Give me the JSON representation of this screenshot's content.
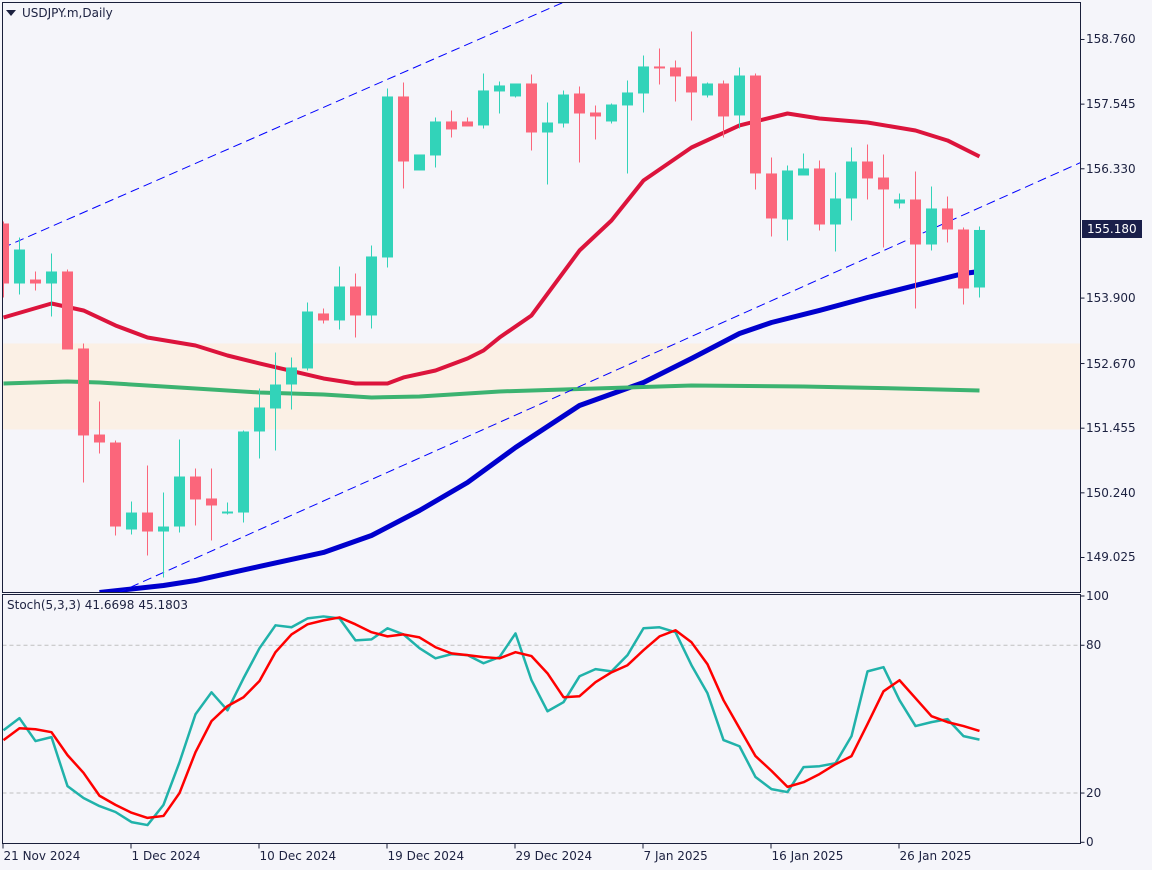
{
  "header": {
    "symbol_label": "USDJPY.m,Daily",
    "dropdown_icon": "triangle-down-icon"
  },
  "colors": {
    "background": "#f5f5fa",
    "bull": "#32d3b9",
    "bear": "#fb667b",
    "axis": "#1a1f3a",
    "zone": "#fbf0e5",
    "channel": "#0000ff",
    "price_tag": "#1a1f4a"
  },
  "chart_data": [
    {
      "type": "candlestick",
      "title": "USDJPY.m,Daily",
      "ylim": [
        148.367,
        159.455
      ],
      "y_ticks": [
        "158.760",
        "157.545",
        "156.330",
        "153.900",
        "152.670",
        "151.455",
        "150.240",
        "149.025"
      ],
      "current_price": "155.180",
      "x_ticks": [
        {
          "index": 0,
          "label": "21 Nov 2024"
        },
        {
          "index": 8,
          "label": "1 Dec 2024"
        },
        {
          "index": 16,
          "label": "10 Dec 2024"
        },
        {
          "index": 24,
          "label": "19 Dec 2024"
        },
        {
          "index": 32,
          "label": "29 Dec 2024"
        },
        {
          "index": 40,
          "label": "7 Jan 2025"
        },
        {
          "index": 48,
          "label": "16 Jan 2025"
        },
        {
          "index": 56,
          "label": "26 Jan 2025"
        }
      ],
      "candles_ohlc": [
        [
          155.302,
          155.34,
          153.911,
          154.174
        ],
        [
          154.174,
          155.039,
          153.968,
          154.813
        ],
        [
          154.249,
          154.4,
          154.043,
          154.174
        ],
        [
          154.174,
          154.738,
          153.554,
          154.4
        ],
        [
          154.4,
          154.437,
          152.934,
          152.934
        ],
        [
          152.953,
          153.047,
          150.434,
          151.318
        ],
        [
          151.336,
          151.957,
          150.979,
          151.186
        ],
        [
          151.186,
          151.224,
          149.438,
          149.607
        ],
        [
          149.551,
          150.077,
          149.457,
          149.87
        ],
        [
          149.87,
          150.754,
          149.062,
          149.513
        ],
        [
          149.513,
          150.246,
          148.649,
          149.607
        ],
        [
          149.607,
          151.243,
          149.495,
          150.547
        ],
        [
          150.547,
          150.697,
          149.626,
          150.115
        ],
        [
          150.134,
          150.697,
          149.344,
          150.002
        ],
        [
          149.852,
          150.058,
          149.833,
          149.889
        ],
        [
          149.87,
          151.412,
          149.683,
          151.393
        ],
        [
          151.393,
          152.201,
          150.885,
          151.844
        ],
        [
          151.825,
          152.878,
          151.036,
          152.276
        ],
        [
          152.276,
          152.784,
          151.806,
          152.596
        ],
        [
          152.577,
          153.817,
          152.539,
          153.648
        ],
        [
          153.611,
          153.704,
          153.423,
          153.479
        ],
        [
          153.479,
          154.494,
          153.31,
          154.118
        ],
        [
          154.118,
          154.362,
          153.159,
          153.573
        ],
        [
          153.573,
          154.888,
          153.329,
          154.682
        ],
        [
          154.663,
          157.839,
          154.475,
          157.689
        ],
        [
          157.689,
          157.952,
          155.96,
          156.467
        ],
        [
          156.298,
          156.599,
          156.298,
          156.599
        ],
        [
          156.58,
          157.294,
          156.354,
          157.219
        ],
        [
          157.219,
          157.426,
          156.918,
          157.069
        ],
        [
          157.219,
          157.294,
          157.125,
          157.125
        ],
        [
          157.144,
          158.121,
          157.087,
          157.802
        ],
        [
          157.783,
          157.971,
          157.369,
          157.896
        ],
        [
          157.689,
          157.933,
          157.67,
          157.933
        ],
        [
          157.933,
          158.102,
          156.674,
          157.012
        ],
        [
          157.012,
          157.576,
          156.035,
          157.2
        ],
        [
          157.181,
          157.802,
          157.106,
          157.726
        ],
        [
          157.745,
          157.877,
          156.448,
          157.369
        ],
        [
          157.388,
          157.52,
          156.881,
          157.313
        ],
        [
          157.219,
          157.557,
          157.181,
          157.538
        ],
        [
          157.52,
          157.989,
          156.242,
          157.764
        ],
        [
          157.745,
          158.459,
          157.388,
          158.253
        ],
        [
          158.253,
          158.591,
          157.914,
          158.215
        ],
        [
          158.234,
          158.365,
          157.595,
          158.065
        ],
        [
          158.065,
          158.91,
          157.238,
          157.764
        ],
        [
          157.708,
          157.952,
          157.67,
          157.933
        ],
        [
          157.933,
          157.989,
          156.918,
          157.313
        ],
        [
          157.332,
          158.234,
          157.087,
          158.083
        ],
        [
          158.083,
          158.121,
          155.941,
          156.242
        ],
        [
          156.242,
          156.542,
          155.058,
          155.396
        ],
        [
          155.377,
          156.392,
          154.982,
          156.298
        ],
        [
          156.204,
          156.618,
          156.204,
          156.336
        ],
        [
          156.336,
          156.486,
          155.17,
          155.283
        ],
        [
          155.283,
          156.26,
          154.776,
          155.772
        ],
        [
          155.772,
          156.73,
          155.358,
          156.467
        ],
        [
          156.467,
          156.787,
          155.753,
          156.148
        ],
        [
          156.166,
          156.599,
          154.851,
          155.941
        ],
        [
          155.678,
          155.866,
          155.584,
          155.753
        ],
        [
          155.753,
          156.279,
          153.704,
          154.907
        ],
        [
          154.907,
          155.997,
          154.794,
          155.584
        ],
        [
          155.584,
          155.809,
          154.945,
          155.189
        ],
        [
          155.189,
          155.227,
          153.78,
          154.08
        ],
        [
          154.099,
          155.246,
          153.911,
          155.18
        ]
      ],
      "moving_averages": [
        {
          "name": "ma-red",
          "color": "#dc143c",
          "points": [
            [
              0,
              153.535
            ],
            [
              3,
              153.798
            ],
            [
              5,
              153.667
            ],
            [
              7,
              153.385
            ],
            [
              9,
              153.159
            ],
            [
              12,
              153.009
            ],
            [
              14,
              152.821
            ],
            [
              16,
              152.671
            ],
            [
              20,
              152.389
            ],
            [
              22,
              152.295
            ],
            [
              24,
              152.295
            ],
            [
              25,
              152.408
            ],
            [
              27,
              152.539
            ],
            [
              29,
              152.765
            ],
            [
              30,
              152.915
            ],
            [
              31,
              153.159
            ],
            [
              33,
              153.573
            ],
            [
              36,
              154.794
            ],
            [
              38,
              155.358
            ],
            [
              40,
              156.11
            ],
            [
              43,
              156.73
            ],
            [
              46,
              157.144
            ],
            [
              49,
              157.369
            ],
            [
              51,
              157.275
            ],
            [
              54,
              157.2
            ],
            [
              57,
              157.05
            ],
            [
              59,
              156.862
            ],
            [
              61,
              156.561
            ]
          ]
        },
        {
          "name": "ma-blue",
          "color": "#0000cd",
          "points": [
            [
              6,
              148.367
            ],
            [
              10,
              148.499
            ],
            [
              12,
              148.592
            ],
            [
              16,
              148.856
            ],
            [
              20,
              149.119
            ],
            [
              23,
              149.438
            ],
            [
              26,
              149.908
            ],
            [
              29,
              150.434
            ],
            [
              32,
              151.092
            ],
            [
              36,
              151.881
            ],
            [
              40,
              152.314
            ],
            [
              43,
              152.765
            ],
            [
              46,
              153.235
            ],
            [
              48,
              153.441
            ],
            [
              51,
              153.667
            ],
            [
              54,
              153.911
            ],
            [
              57,
              154.137
            ],
            [
              60,
              154.362
            ],
            [
              61,
              154.4
            ]
          ]
        },
        {
          "name": "ma-green",
          "color": "#3cb371",
          "points": [
            [
              0,
              152.295
            ],
            [
              4,
              152.333
            ],
            [
              6,
              152.314
            ],
            [
              12,
              152.201
            ],
            [
              16,
              152.126
            ],
            [
              20,
              152.088
            ],
            [
              23,
              152.032
            ],
            [
              26,
              152.051
            ],
            [
              31,
              152.145
            ],
            [
              37,
              152.201
            ],
            [
              43,
              152.257
            ],
            [
              50,
              152.239
            ],
            [
              56,
              152.201
            ],
            [
              61,
              152.163
            ]
          ]
        }
      ],
      "channel_lines": [
        {
          "name": "channel-upper",
          "from": [
            0,
            154.851
          ],
          "to": [
            34.69,
            159.418
          ]
        },
        {
          "name": "channel-lower",
          "from": [
            8.875,
            148.592
          ],
          "to": [
            67.19,
            156.43
          ]
        }
      ],
      "zone": {
        "low": 151.43,
        "high": 153.047
      }
    },
    {
      "type": "line",
      "title": "Stoch(5,3,3)",
      "k_label": "41.6698",
      "d_label": "45.1803",
      "ylim": [
        0,
        100
      ],
      "y_ticks": [
        "100",
        "80",
        "20",
        "0"
      ],
      "levels": [
        20,
        80
      ],
      "series": [
        {
          "name": "%K",
          "color": "#20b2aa",
          "values": [
            45.5,
            50.4,
            41.1,
            42.7,
            22.8,
            18.0,
            14.7,
            12.3,
            8.2,
            7.0,
            15.2,
            32.5,
            52.0,
            60.9,
            53.6,
            66.6,
            78.8,
            88.1,
            87.3,
            90.9,
            91.7,
            90.9,
            82.0,
            82.4,
            86.9,
            84.4,
            78.8,
            74.7,
            76.4,
            76.0,
            72.7,
            75.2,
            84.8,
            65.8,
            53.2,
            56.9,
            67.4,
            70.3,
            69.4,
            76.0,
            86.9,
            87.3,
            85.3,
            71.9,
            60.5,
            41.5,
            39.0,
            26.5,
            21.6,
            20.4,
            30.5,
            30.9,
            32.1,
            43.1,
            69.4,
            71.1,
            57.7,
            47.2,
            48.8,
            50.0,
            43.1,
            41.7
          ]
        },
        {
          "name": "%D",
          "color": "#ff0000",
          "values": [
            41.5,
            46.3,
            45.9,
            44.7,
            35.4,
            28.2,
            18.9,
            15.2,
            12.0,
            9.9,
            10.7,
            20.0,
            36.6,
            49.2,
            55.3,
            58.9,
            65.5,
            77.2,
            84.4,
            88.5,
            90.1,
            91.3,
            88.5,
            85.3,
            83.6,
            84.4,
            83.2,
            79.2,
            76.7,
            76.0,
            75.2,
            74.7,
            77.2,
            75.6,
            68.6,
            58.9,
            59.3,
            65.0,
            69.0,
            71.9,
            78.0,
            83.6,
            86.1,
            81.2,
            72.3,
            57.7,
            46.3,
            35.0,
            29.0,
            22.5,
            24.4,
            27.7,
            31.7,
            35.0,
            48.0,
            61.3,
            65.8,
            58.5,
            51.2,
            48.8,
            47.2,
            45.2
          ]
        }
      ]
    }
  ]
}
